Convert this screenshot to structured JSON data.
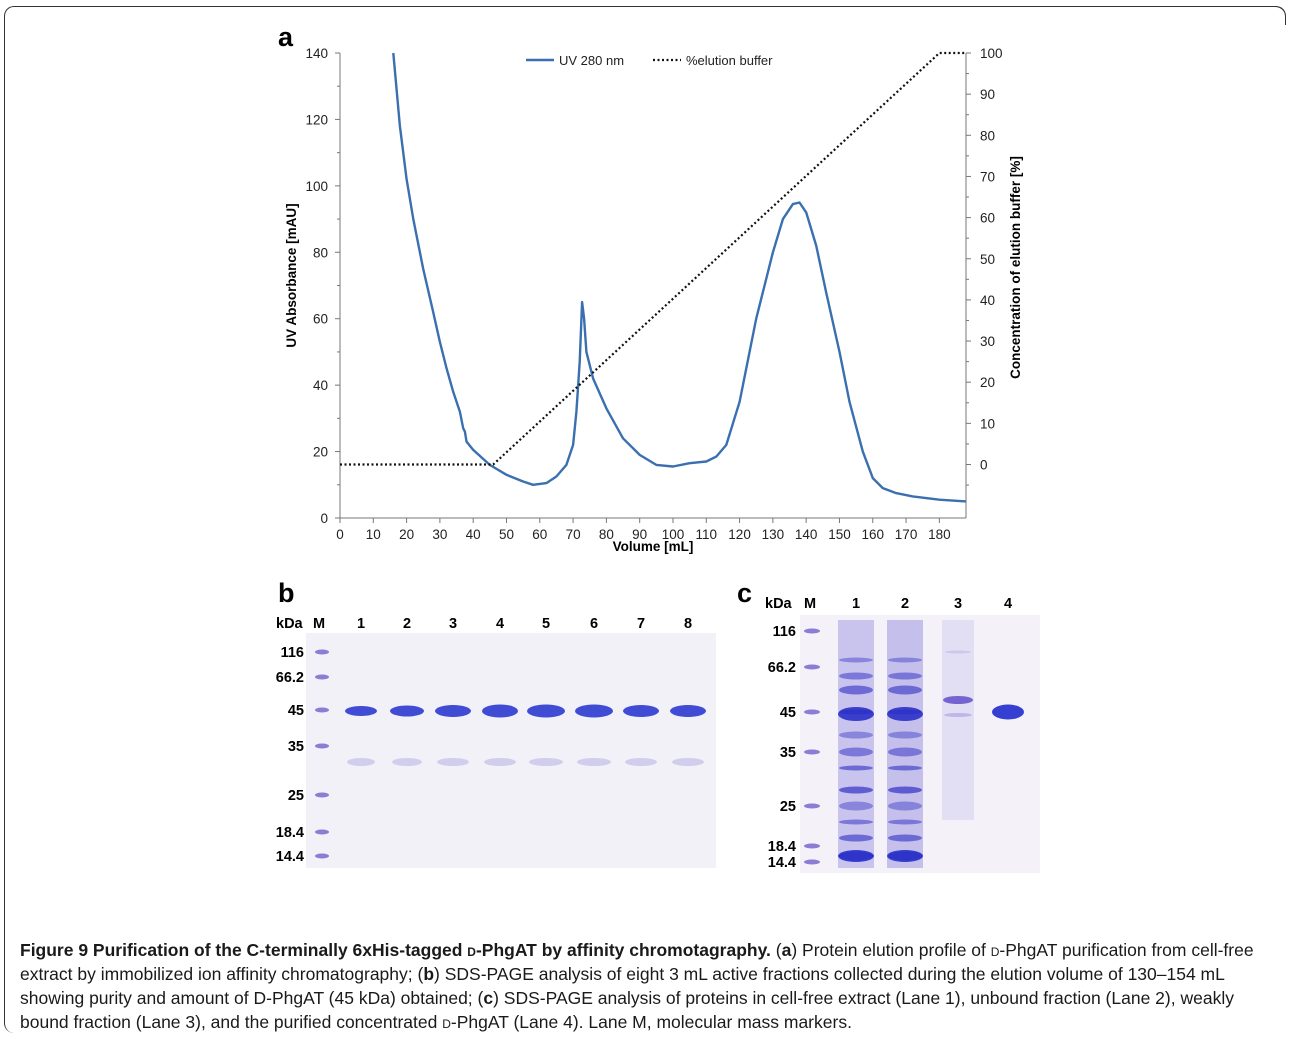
{
  "panels": {
    "a": "a",
    "b": "b",
    "c": "c"
  },
  "chart_data": {
    "type": "line",
    "xlabel": "Volume [mL]",
    "ylabel": "UV Absorbance [mAU]",
    "y2label": "Concentration of elution buffer [%]",
    "xlim": [
      0,
      188
    ],
    "ylim": [
      0,
      140
    ],
    "y2lim": [
      -13,
      100
    ],
    "xticks": [
      0,
      10,
      20,
      30,
      40,
      50,
      60,
      70,
      80,
      90,
      100,
      110,
      120,
      130,
      140,
      150,
      160,
      170,
      180
    ],
    "yticks": [
      0,
      20,
      40,
      60,
      80,
      100,
      120,
      140
    ],
    "y2ticks": [
      0,
      10,
      20,
      30,
      40,
      50,
      60,
      70,
      80,
      90,
      100
    ],
    "legend_position": "top-center",
    "series": [
      {
        "name": "UV 280 nm",
        "axis": "left",
        "style": "solid",
        "color": "#3a6fb0",
        "points": [
          [
            16,
            140
          ],
          [
            18,
            118
          ],
          [
            20,
            102
          ],
          [
            22,
            90
          ],
          [
            25,
            75
          ],
          [
            28,
            62
          ],
          [
            30,
            53
          ],
          [
            32,
            45
          ],
          [
            34,
            38
          ],
          [
            36,
            32
          ],
          [
            37,
            27
          ],
          [
            37.5,
            26
          ],
          [
            38,
            23
          ],
          [
            40,
            20.5
          ],
          [
            45,
            16
          ],
          [
            50,
            13
          ],
          [
            55,
            11
          ],
          [
            58,
            10
          ],
          [
            62,
            10.5
          ],
          [
            65,
            12.5
          ],
          [
            68,
            16
          ],
          [
            70,
            22
          ],
          [
            71,
            32
          ],
          [
            72,
            47
          ],
          [
            72.7,
            65
          ],
          [
            73.3,
            60
          ],
          [
            74,
            50
          ],
          [
            76,
            42
          ],
          [
            80,
            33
          ],
          [
            85,
            24
          ],
          [
            90,
            19
          ],
          [
            95,
            16
          ],
          [
            100,
            15.5
          ],
          [
            105,
            16.5
          ],
          [
            110,
            17
          ],
          [
            113,
            18.5
          ],
          [
            116,
            22
          ],
          [
            120,
            35
          ],
          [
            125,
            60
          ],
          [
            130,
            80
          ],
          [
            133,
            90
          ],
          [
            136,
            94.5
          ],
          [
            138,
            95
          ],
          [
            140,
            92
          ],
          [
            143,
            82
          ],
          [
            146,
            68
          ],
          [
            150,
            50
          ],
          [
            153,
            35
          ],
          [
            157,
            20
          ],
          [
            160,
            12
          ],
          [
            163,
            9
          ],
          [
            167,
            7.5
          ],
          [
            172,
            6.5
          ],
          [
            180,
            5.5
          ],
          [
            188,
            5
          ]
        ]
      },
      {
        "name": "%elution buffer",
        "axis": "right",
        "style": "dotted",
        "color": "#111111",
        "points": [
          [
            0,
            0
          ],
          [
            46,
            0
          ],
          [
            180,
            100
          ],
          [
            188,
            100
          ]
        ]
      }
    ]
  },
  "gel_b": {
    "kda_label": "kDa",
    "marker_label": "M",
    "lanes": [
      "1",
      "2",
      "3",
      "4",
      "5",
      "6",
      "7",
      "8"
    ],
    "markers": [
      "116",
      "66.2",
      "45",
      "35",
      "25",
      "18.4",
      "14.4"
    ]
  },
  "gel_c": {
    "kda_label": "kDa",
    "marker_label": "M",
    "lanes": [
      "1",
      "2",
      "3",
      "4"
    ],
    "markers": [
      "116",
      "66.2",
      "45",
      "35",
      "25",
      "18.4",
      "14.4"
    ]
  },
  "caption": {
    "title_pre": "Figure 9 Purification of the C-terminally 6xHis-tagged ",
    "title_d": "d",
    "title_post": "-PhgAT by affinity chromotagraphy.",
    "body_1": " (",
    "a": "a",
    "body_2": ") Protein elution profile of ",
    "d1": "d",
    "body_3": "-PhgAT purification from cell-free extract by immobilized ion affinity chromatography; (",
    "b": "b",
    "body_4": ") SDS-PAGE analysis of eight 3 mL active fractions collected during the elution volume of 130–154 mL showing purity and amount of D-PhgAT (45 kDa) obtained; (",
    "c": "c",
    "body_5": ") SDS-PAGE analysis of proteins in cell-free extract (Lane 1), unbound fraction (Lane 2), weakly bound fraction (Lane 3), and the purified concentrated ",
    "d2": "d",
    "body_6": "-PhgAT (Lane 4). Lane M, molecular mass markers."
  }
}
